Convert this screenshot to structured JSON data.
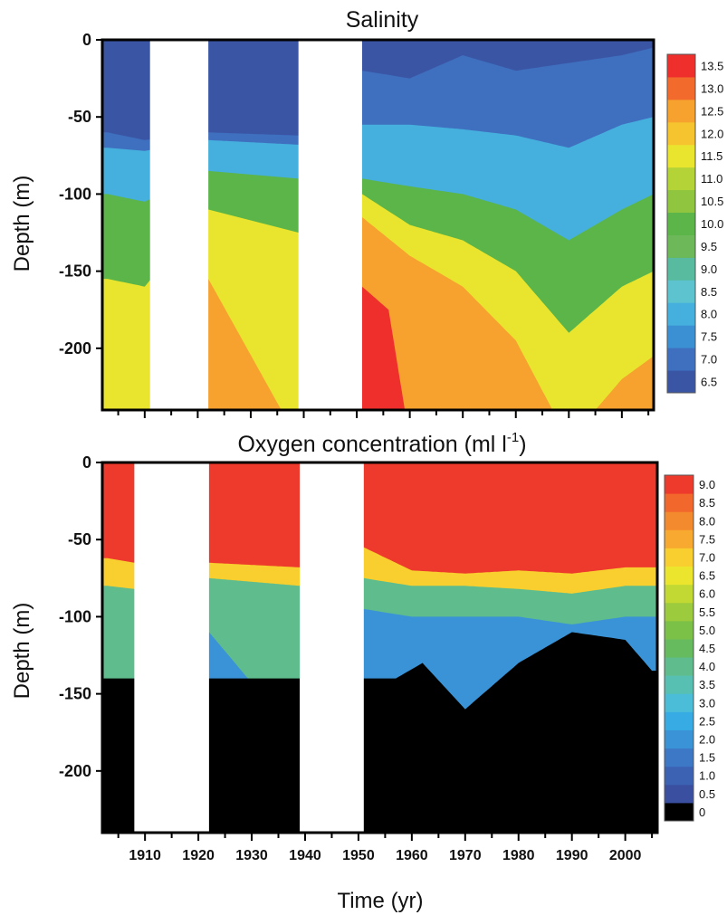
{
  "chart_data": [
    {
      "type": "contour",
      "title": "Salinity",
      "ylabel": "Depth (m)",
      "xlabel": "",
      "xlim": [
        1902,
        2006
      ],
      "ylim": [
        -240,
        0
      ],
      "y_ticks": [
        "0",
        "-50",
        "-100",
        "-150",
        "-200"
      ],
      "y_tick_values": [
        0,
        -50,
        -100,
        -150,
        -200
      ],
      "colorbar": {
        "labels": [
          "6.5",
          "7.0",
          "7.5",
          "8.0",
          "8.5",
          "9.0",
          "9.5",
          "10.0",
          "10.5",
          "11.0",
          "11.5",
          "12.0",
          "12.5",
          "13.0",
          "13.5"
        ],
        "colors": [
          "#3a55a4",
          "#3f6fbf",
          "#3b8fd3",
          "#45b0dd",
          "#5cc3cf",
          "#58bba0",
          "#6db858",
          "#5bb548",
          "#8fc53f",
          "#b3d337",
          "#e9e52e",
          "#f5c42f",
          "#f7a12f",
          "#f26a2c",
          "#ee2f2c"
        ]
      },
      "data_gaps_years": [
        [
          1911,
          1922
        ],
        [
          1939,
          1951
        ]
      ],
      "contours": [
        {
          "level": 7.0,
          "depths_by_year": [
            [
              1903,
              -60
            ],
            [
              1910,
              -65
            ],
            [
              1922,
              -60
            ],
            [
              1939,
              -62
            ],
            [
              1951,
              -20
            ],
            [
              1960,
              -25
            ],
            [
              1970,
              -10
            ],
            [
              1980,
              -20
            ],
            [
              1990,
              -15
            ],
            [
              2000,
              -10
            ],
            [
              2006,
              -5
            ]
          ]
        },
        {
          "level": 8.0,
          "depths_by_year": [
            [
              1903,
              -70
            ],
            [
              1910,
              -72
            ],
            [
              1922,
              -65
            ],
            [
              1939,
              -68
            ],
            [
              1951,
              -55
            ],
            [
              1960,
              -55
            ],
            [
              1970,
              -58
            ],
            [
              1980,
              -62
            ],
            [
              1990,
              -70
            ],
            [
              2000,
              -55
            ],
            [
              2006,
              -50
            ]
          ]
        },
        {
          "level": 10.0,
          "depths_by_year": [
            [
              1903,
              -100
            ],
            [
              1910,
              -105
            ],
            [
              1922,
              -85
            ],
            [
              1939,
              -90
            ],
            [
              1951,
              -90
            ],
            [
              1960,
              -95
            ],
            [
              1970,
              -100
            ],
            [
              1980,
              -110
            ],
            [
              1990,
              -130
            ],
            [
              2000,
              -110
            ],
            [
              2006,
              -100
            ]
          ]
        },
        {
          "level": 11.5,
          "depths_by_year": [
            [
              1903,
              -155
            ],
            [
              1910,
              -160
            ],
            [
              1922,
              -110
            ],
            [
              1939,
              -125
            ],
            [
              1951,
              -100
            ],
            [
              1960,
              -120
            ],
            [
              1970,
              -130
            ],
            [
              1980,
              -150
            ],
            [
              1990,
              -190
            ],
            [
              2000,
              -160
            ],
            [
              2006,
              -150
            ]
          ]
        },
        {
          "level": 12.5,
          "depths_by_year": [
            [
              1903,
              -260
            ],
            [
              1910,
              -260
            ],
            [
              1922,
              -155
            ],
            [
              1939,
              -260
            ],
            [
              1951,
              -115
            ],
            [
              1960,
              -140
            ],
            [
              1970,
              -160
            ],
            [
              1980,
              -195
            ],
            [
              1990,
              -260
            ],
            [
              2000,
              -220
            ],
            [
              2006,
              -205
            ]
          ]
        },
        {
          "level": 13.5,
          "depths_by_year": [
            [
              1903,
              -260
            ],
            [
              1910,
              -260
            ],
            [
              1922,
              -260
            ],
            [
              1939,
              -260
            ],
            [
              1951,
              -160
            ],
            [
              1956,
              -175
            ],
            [
              1960,
              -260
            ],
            [
              2006,
              -260
            ]
          ]
        }
      ]
    },
    {
      "type": "contour",
      "title": "Oxygen concentration (ml l",
      "title_superscript": "-1",
      "title_suffix": ")",
      "ylabel": "Depth (m)",
      "xlabel": "Time (yr)",
      "xlim": [
        1902,
        2006
      ],
      "ylim": [
        -240,
        0
      ],
      "x_ticks": [
        "1910",
        "1920",
        "1930",
        "1940",
        "1950",
        "1960",
        "1970",
        "1980",
        "1990",
        "2000"
      ],
      "x_tick_values": [
        1910,
        1920,
        1930,
        1940,
        1950,
        1960,
        1970,
        1980,
        1990,
        2000
      ],
      "y_ticks": [
        "0",
        "-50",
        "-100",
        "-150",
        "-200"
      ],
      "y_tick_values": [
        0,
        -50,
        -100,
        -150,
        -200
      ],
      "colorbar": {
        "labels": [
          "0",
          "0.5",
          "1.0",
          "1.5",
          "2.0",
          "2.5",
          "3.0",
          "3.5",
          "4.0",
          "4.5",
          "5.0",
          "5.5",
          "6.0",
          "6.5",
          "7.0",
          "7.5",
          "8.0",
          "8.5",
          "9.0"
        ],
        "colors": [
          "#000000",
          "#3a4fa0",
          "#3c62b4",
          "#3d78c6",
          "#3a93d6",
          "#37abe3",
          "#4cbdd8",
          "#58c0b2",
          "#5fbc8d",
          "#67bb5f",
          "#7cc147",
          "#9ccb3d",
          "#c2d934",
          "#ebe62d",
          "#f8cf2e",
          "#f7aa2f",
          "#f48a2e",
          "#f1672c",
          "#ee3a2c"
        ]
      },
      "data_gaps_years": [
        [
          1908,
          1922
        ],
        [
          1939,
          1951
        ]
      ],
      "contours": [
        {
          "level": 7.0,
          "depths_by_year": [
            [
              1903,
              -62
            ],
            [
              1908,
              -65
            ],
            [
              1922,
              -65
            ],
            [
              1939,
              -68
            ],
            [
              1951,
              -55
            ],
            [
              1960,
              -70
            ],
            [
              1970,
              -72
            ],
            [
              1980,
              -70
            ],
            [
              1990,
              -72
            ],
            [
              2000,
              -68
            ],
            [
              2006,
              -68
            ]
          ]
        },
        {
          "level": 4.0,
          "depths_by_year": [
            [
              1903,
              -80
            ],
            [
              1908,
              -82
            ],
            [
              1922,
              -75
            ],
            [
              1939,
              -80
            ],
            [
              1951,
              -75
            ],
            [
              1960,
              -80
            ],
            [
              1970,
              -80
            ],
            [
              1980,
              -82
            ],
            [
              1990,
              -85
            ],
            [
              2000,
              -80
            ],
            [
              2006,
              -80
            ]
          ]
        },
        {
          "level": 2.0,
          "depths_by_year": [
            [
              1903,
              -200
            ],
            [
              1908,
              -205
            ],
            [
              1922,
              -110
            ],
            [
              1939,
              -180
            ],
            [
              1951,
              -95
            ],
            [
              1960,
              -100
            ],
            [
              1970,
              -100
            ],
            [
              1980,
              -100
            ],
            [
              1990,
              -105
            ],
            [
              2000,
              -100
            ],
            [
              2006,
              -100
            ]
          ]
        },
        {
          "level": 0.0,
          "depths_by_year": [
            [
              1957,
              -140
            ],
            [
              1962,
              -130
            ],
            [
              1970,
              -160
            ],
            [
              1980,
              -130
            ],
            [
              1990,
              -110
            ],
            [
              2000,
              -115
            ],
            [
              2005,
              -135
            ]
          ]
        }
      ]
    }
  ]
}
